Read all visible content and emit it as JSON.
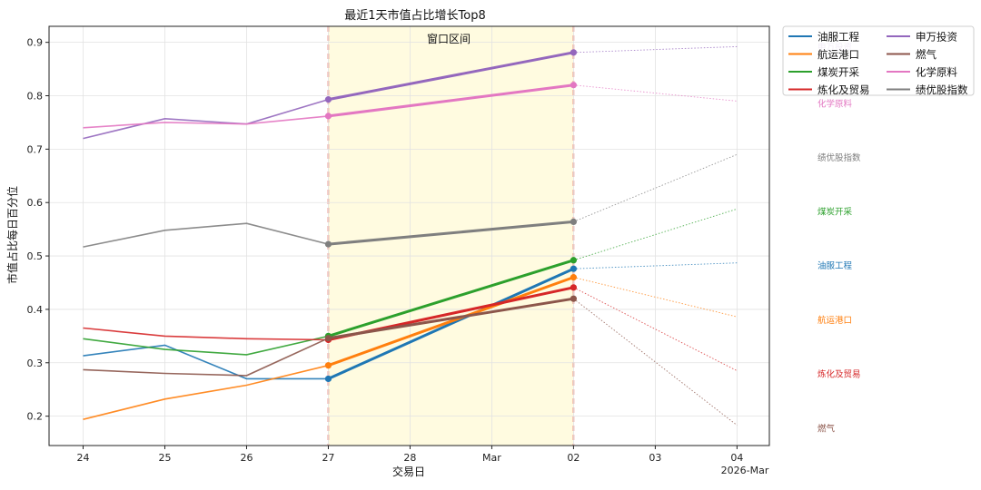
{
  "chart_data": {
    "type": "line",
    "title": "最近1天市值占比增长Top8",
    "xlabel": "交易日",
    "ylabel": "市值占比每日百分位",
    "ylim": [
      0.145,
      0.93
    ],
    "yticks": [
      0.2,
      0.3,
      0.4,
      0.5,
      0.6,
      0.7,
      0.8,
      0.9
    ],
    "ytick_labels": [
      "0.2",
      "0.3",
      "0.4",
      "0.5",
      "0.6",
      "0.7",
      "0.8",
      "0.9"
    ],
    "x_dates": [
      "2026-02-24",
      "2026-02-25",
      "2026-02-26",
      "2026-02-27",
      "2026-03-02"
    ],
    "xticks": [
      "2026-02-24",
      "2026-02-25",
      "2026-02-26",
      "2026-02-27",
      "2026-02-28",
      "2026-03-01",
      "2026-03-02",
      "2026-03-03",
      "2026-03-04"
    ],
    "xtick_labels": [
      "24",
      "25",
      "26",
      "27",
      "28",
      "Mar",
      "02",
      "03",
      "04"
    ],
    "x_offset_label": "2026-Mar",
    "xlim": [
      "2026-02-23 14:00",
      "2026-03-04 09:30"
    ],
    "window_label": "窗口区间",
    "window_start": "2026-02-27",
    "window_end": "2026-03-02",
    "projection_date": "2026-03-04",
    "grid": true,
    "legend_placement": "outside top-right",
    "series": [
      {
        "name": "油服工程",
        "color": "#1f77b4",
        "values": [
          0.313,
          0.333,
          0.27,
          0.27,
          0.476
        ],
        "projection": 0.487
      },
      {
        "name": "航运港口",
        "color": "#ff7f0e",
        "values": [
          0.194,
          0.232,
          0.258,
          0.295,
          0.46
        ],
        "projection": 0.386
      },
      {
        "name": "煤炭开采",
        "color": "#2ca02c",
        "values": [
          0.345,
          0.325,
          0.315,
          0.35,
          0.492
        ],
        "projection": 0.588
      },
      {
        "name": "炼化及贸易",
        "color": "#d62728",
        "values": [
          0.365,
          0.35,
          0.345,
          0.343,
          0.441
        ],
        "projection": 0.285
      },
      {
        "name": "申万投资",
        "color": "#9467bd",
        "values": [
          0.72,
          0.757,
          0.747,
          0.793,
          0.881
        ],
        "projection": 0.892
      },
      {
        "name": "燃气",
        "color": "#8c564b",
        "values": [
          0.287,
          0.28,
          0.276,
          0.346,
          0.42
        ],
        "projection": 0.183
      },
      {
        "name": "化学原料",
        "color": "#e377c2",
        "values": [
          0.74,
          0.75,
          0.747,
          0.762,
          0.82
        ],
        "projection": 0.79
      },
      {
        "name": "绩优股指数",
        "color": "#7f7f7f",
        "values": [
          0.517,
          0.548,
          0.561,
          0.522,
          0.564
        ],
        "projection": 0.69
      }
    ],
    "end_labels": [
      {
        "text": "申万投资",
        "color": "#9467bd",
        "value": 0.893
      },
      {
        "text": "化学原料",
        "color": "#e377c2",
        "value": 0.786
      },
      {
        "text": "绩优股指数",
        "color": "#7f7f7f",
        "value": 0.685
      },
      {
        "text": "煤炭开采",
        "color": "#2ca02c",
        "value": 0.584
      },
      {
        "text": "油服工程",
        "color": "#1f77b4",
        "value": 0.483
      },
      {
        "text": "航运港口",
        "color": "#ff7f0e",
        "value": 0.381
      },
      {
        "text": "炼化及贸易",
        "color": "#d62728",
        "value": 0.28
      },
      {
        "text": "燃气",
        "color": "#8c564b",
        "value": 0.178
      }
    ]
  },
  "legend": {
    "items": [
      {
        "label": "油服工程",
        "color": "#1f77b4"
      },
      {
        "label": "航运港口",
        "color": "#ff7f0e"
      },
      {
        "label": "煤炭开采",
        "color": "#2ca02c"
      },
      {
        "label": "炼化及贸易",
        "color": "#d62728"
      },
      {
        "label": "申万投资",
        "color": "#9467bd"
      },
      {
        "label": "燃气",
        "color": "#8c564b"
      },
      {
        "label": "化学原料",
        "color": "#e377c2"
      },
      {
        "label": "绩优股指数",
        "color": "#7f7f7f"
      }
    ]
  }
}
